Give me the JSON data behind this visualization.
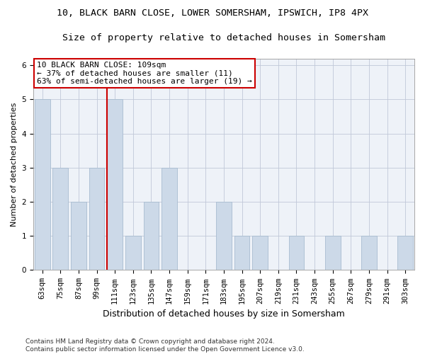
{
  "title1": "10, BLACK BARN CLOSE, LOWER SOMERSHAM, IPSWICH, IP8 4PX",
  "title2": "Size of property relative to detached houses in Somersham",
  "xlabel": "Distribution of detached houses by size in Somersham",
  "ylabel": "Number of detached properties",
  "categories": [
    "63sqm",
    "75sqm",
    "87sqm",
    "99sqm",
    "111sqm",
    "123sqm",
    "135sqm",
    "147sqm",
    "159sqm",
    "171sqm",
    "183sqm",
    "195sqm",
    "207sqm",
    "219sqm",
    "231sqm",
    "243sqm",
    "255sqm",
    "267sqm",
    "279sqm",
    "291sqm",
    "303sqm"
  ],
  "values": [
    5,
    3,
    2,
    3,
    5,
    1,
    2,
    3,
    0,
    0,
    2,
    1,
    1,
    0,
    1,
    0,
    1,
    0,
    1,
    0,
    1
  ],
  "bar_color": "#ccd9e8",
  "bar_edge_color": "#a8bcd0",
  "highlight_index": 4,
  "highlight_line_color": "#cc0000",
  "annotation_text": "10 BLACK BARN CLOSE: 109sqm\n← 37% of detached houses are smaller (11)\n63% of semi-detached houses are larger (19) →",
  "annotation_box_color": "#ffffff",
  "annotation_box_edge_color": "#cc0000",
  "ylim": [
    0,
    6.2
  ],
  "yticks": [
    0,
    1,
    2,
    3,
    4,
    5,
    6
  ],
  "plot_bg_color": "#eef2f8",
  "footer_text": "Contains HM Land Registry data © Crown copyright and database right 2024.\nContains public sector information licensed under the Open Government Licence v3.0.",
  "title1_fontsize": 9.5,
  "title2_fontsize": 9.5,
  "xlabel_fontsize": 9,
  "ylabel_fontsize": 8,
  "tick_fontsize": 7.5,
  "annotation_fontsize": 8,
  "footer_fontsize": 6.5
}
